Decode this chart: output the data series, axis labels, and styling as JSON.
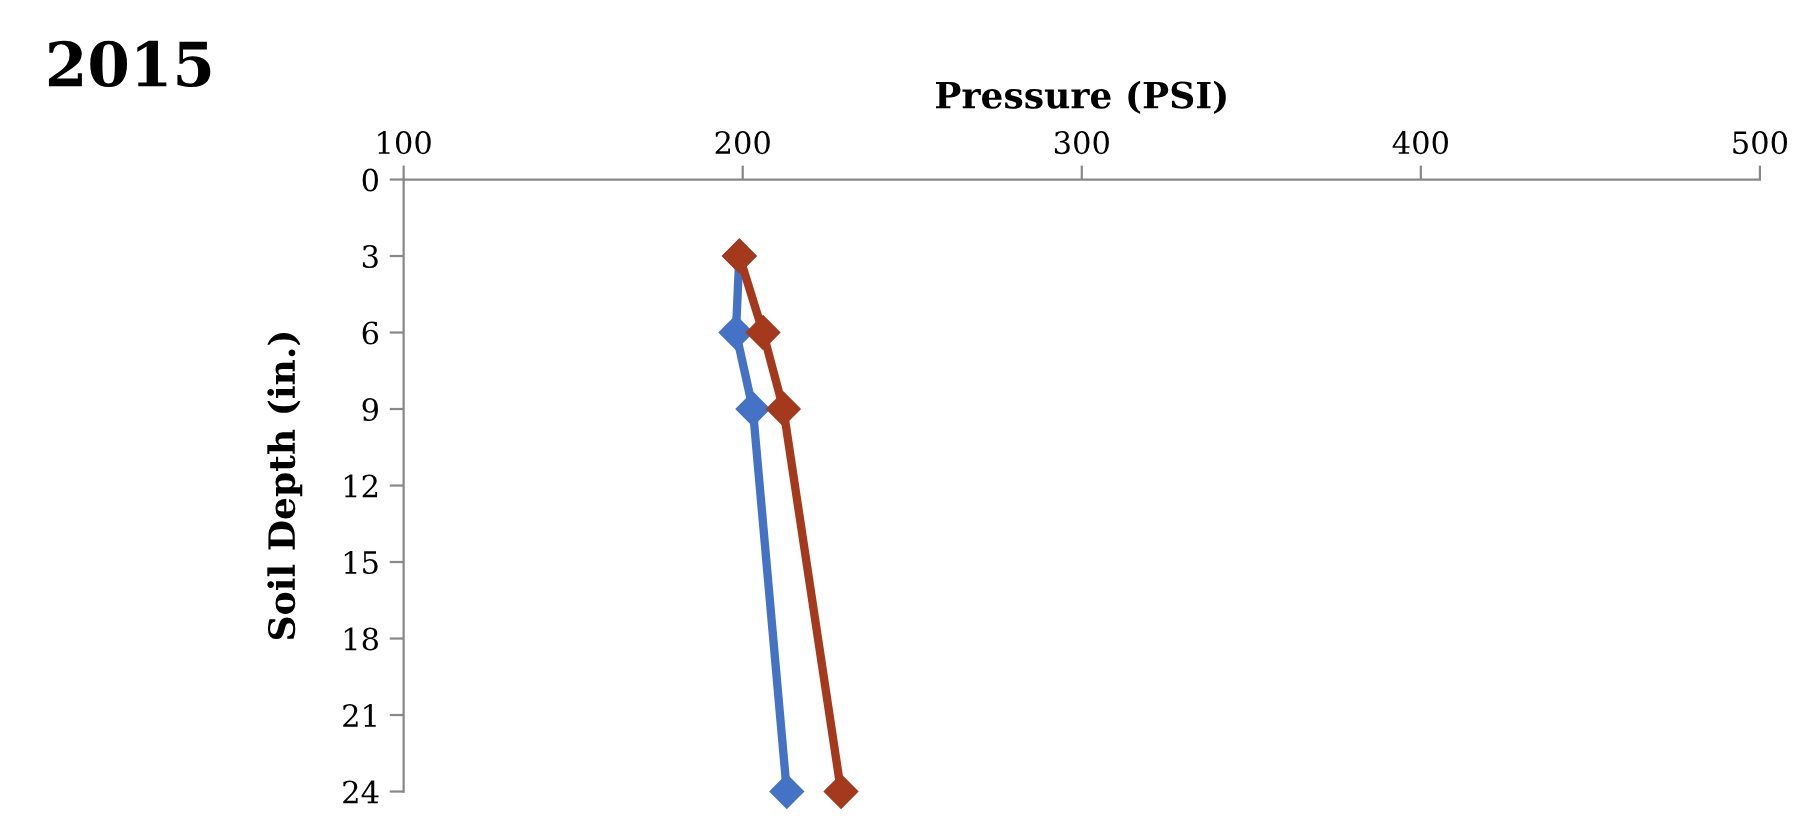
{
  "chart_data": {
    "type": "line",
    "title": "2015",
    "xlabel": "Pressure (PSI)",
    "ylabel": "Soil Depth (in.)",
    "xlim": [
      100,
      500
    ],
    "xticks": [
      100,
      200,
      300,
      400,
      500
    ],
    "ylim": [
      24,
      0
    ],
    "yticks": [
      0,
      3,
      6,
      9,
      12,
      15,
      18,
      21,
      24
    ],
    "marker": "diamond",
    "line_style": "solid",
    "grid": false,
    "legend": false,
    "series": [
      {
        "color": "#4472c4",
        "x": [
          199,
          198,
          203,
          213
        ],
        "values": [
          3,
          6,
          9,
          24
        ]
      },
      {
        "color": "#a5391c",
        "x": [
          199,
          206,
          212,
          229
        ],
        "values": [
          3,
          6,
          9,
          24
        ]
      }
    ]
  }
}
